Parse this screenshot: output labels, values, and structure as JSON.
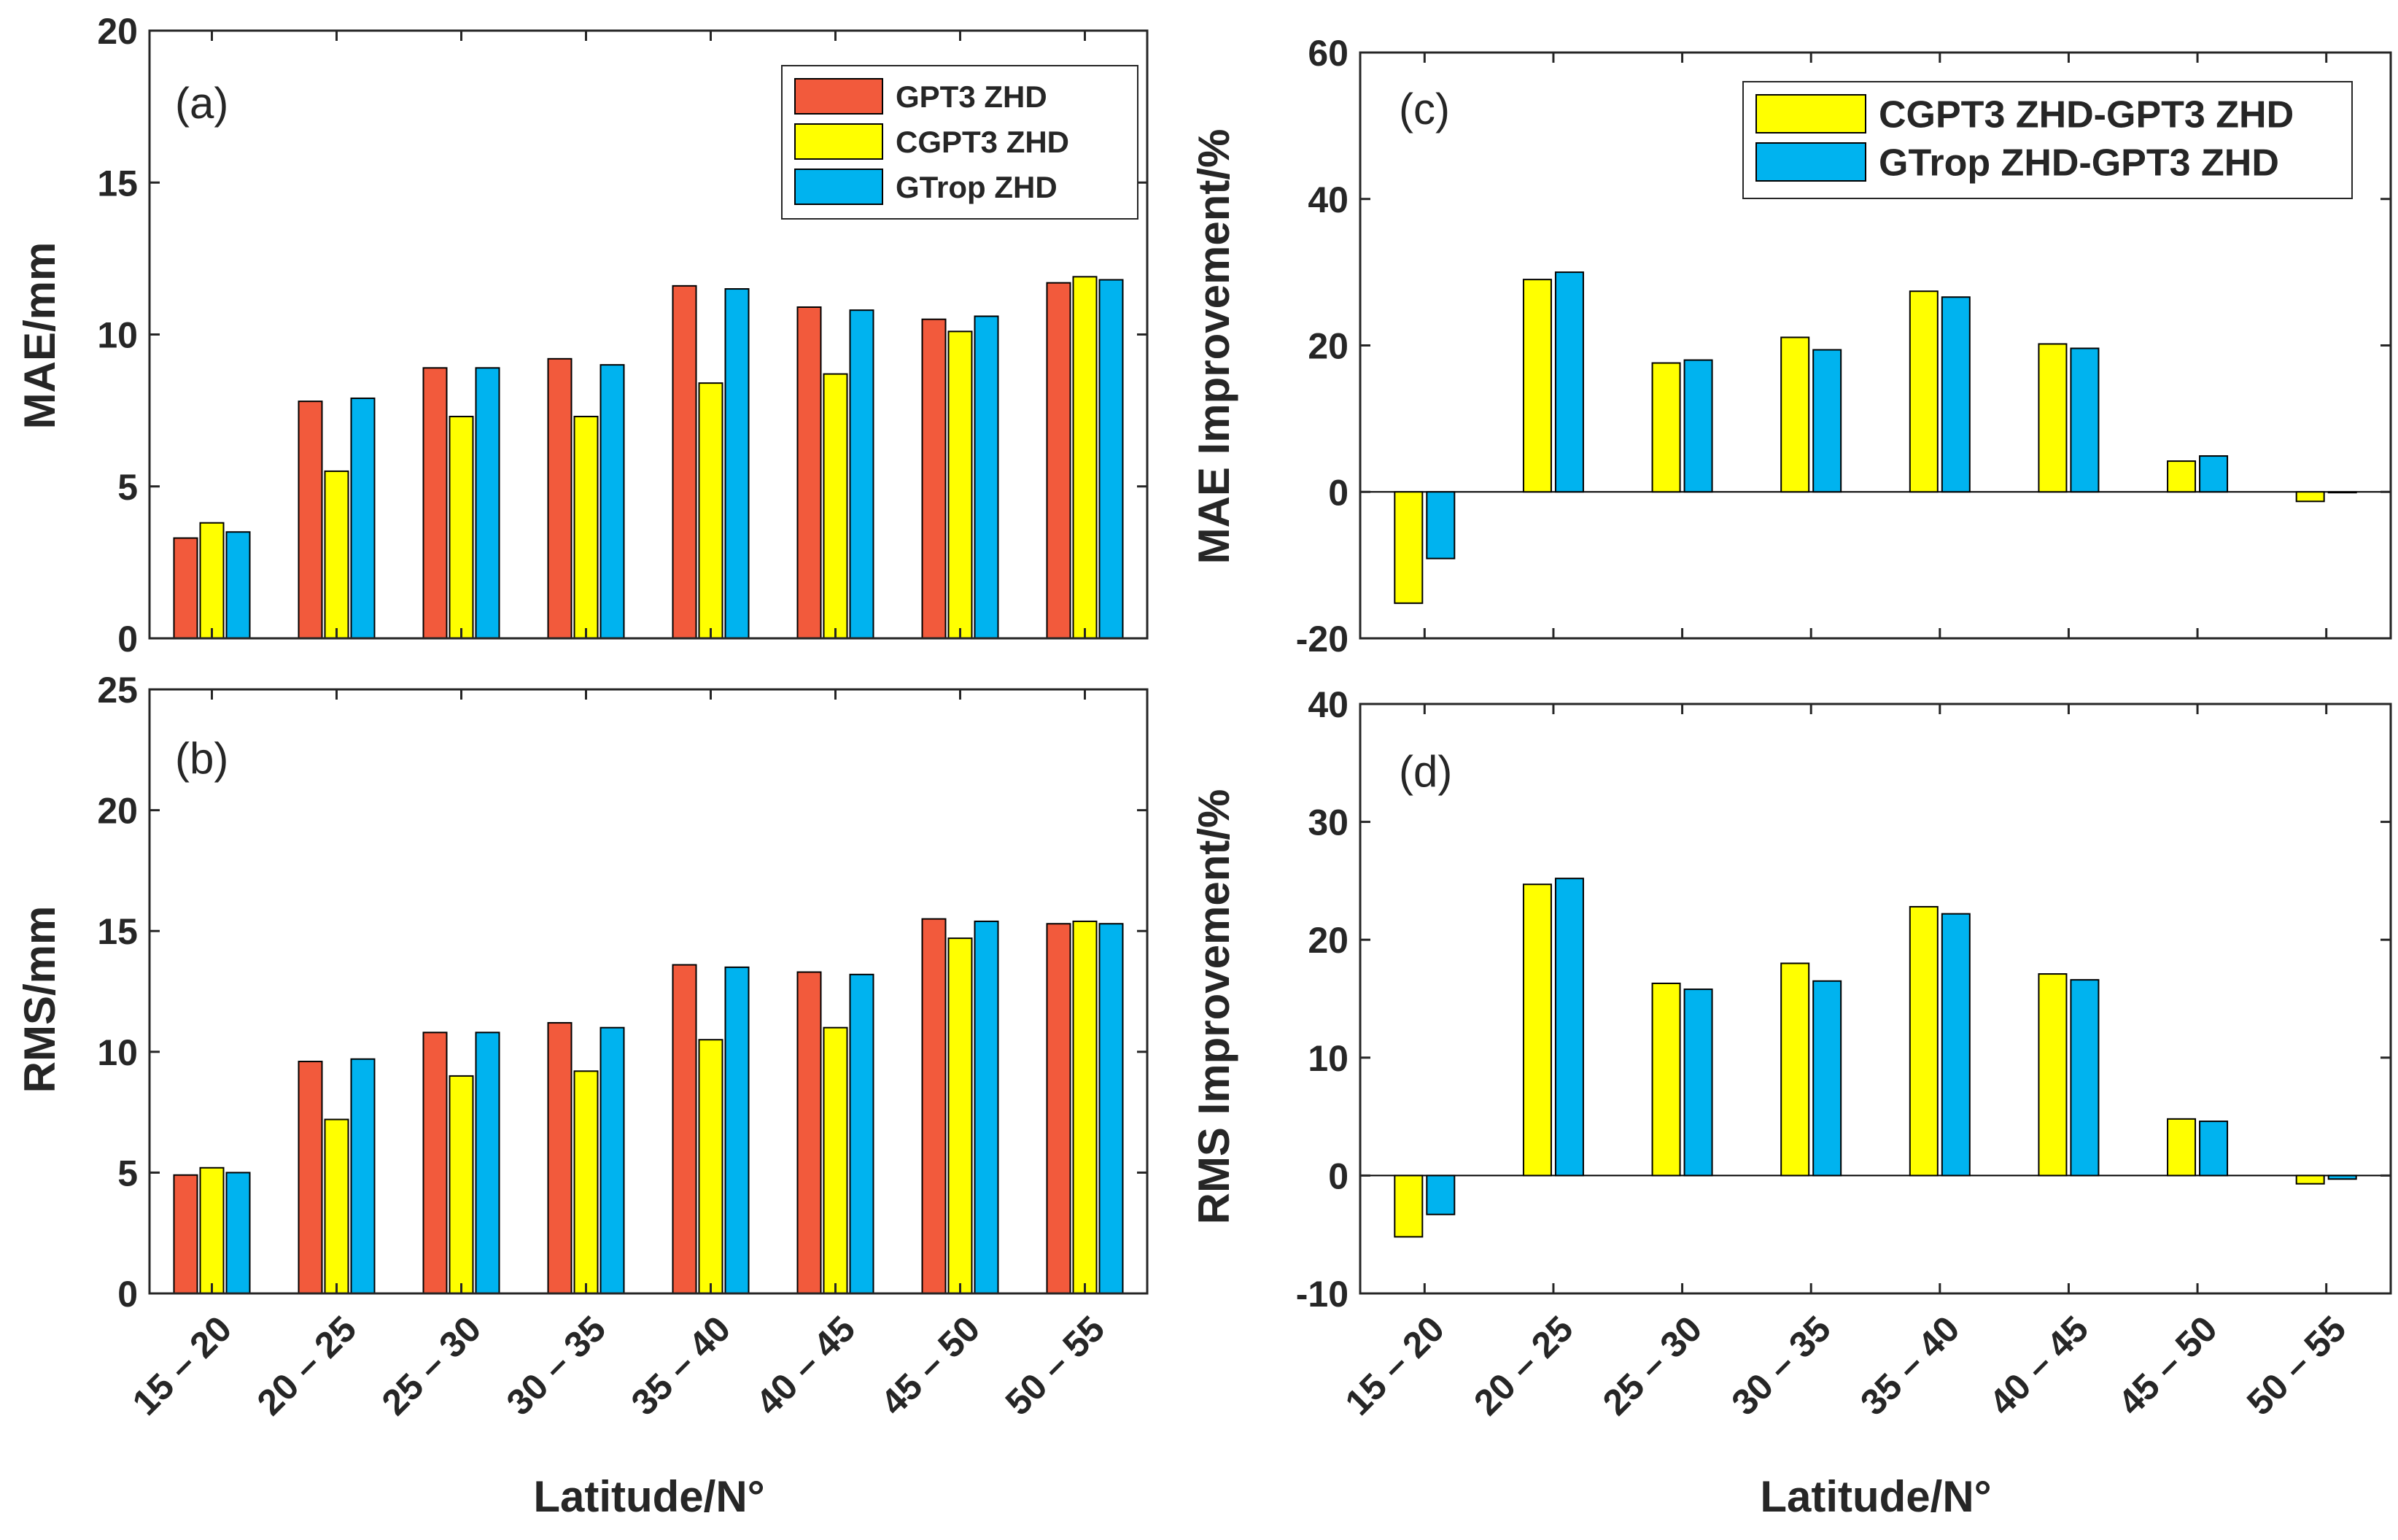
{
  "colors": {
    "gpt3": "#f25a3c",
    "cgpt3": "#ffff00",
    "gtrop": "#00b3ef",
    "axis": "#262626",
    "bar_edge": "#000000"
  },
  "x_axis_label": "Latitude/N°",
  "chart_data": [
    {
      "id": "a",
      "type": "bar",
      "label": "(a)",
      "ylabel": "MAE/mm",
      "ylim": [
        0,
        20
      ],
      "yticks": [
        0,
        5,
        10,
        15,
        20
      ],
      "categories": [
        "15 – 20",
        "20 – 25",
        "25 – 30",
        "30 – 35",
        "35 – 40",
        "40 – 45",
        "45 – 50",
        "50 – 55"
      ],
      "legend_position": "top-right",
      "series": [
        {
          "name": "GPT3 ZHD",
          "color_key": "gpt3",
          "values": [
            3.3,
            7.8,
            8.9,
            9.2,
            11.6,
            10.9,
            10.5,
            11.7
          ]
        },
        {
          "name": "CGPT3 ZHD",
          "color_key": "cgpt3",
          "values": [
            3.8,
            5.5,
            7.3,
            7.3,
            8.4,
            8.7,
            10.1,
            11.9
          ]
        },
        {
          "name": "GTrop ZHD",
          "color_key": "gtrop",
          "values": [
            3.5,
            7.9,
            8.9,
            9.0,
            11.5,
            10.8,
            10.6,
            11.8
          ]
        }
      ]
    },
    {
      "id": "b",
      "type": "bar",
      "label": "(b)",
      "ylabel": "RMS/mm",
      "ylim": [
        0,
        25
      ],
      "yticks": [
        0,
        5,
        10,
        15,
        20,
        25
      ],
      "categories": [
        "15 – 20",
        "20 – 25",
        "25 – 30",
        "30 – 35",
        "35 – 40",
        "40 – 45",
        "45 – 50",
        "50 – 55"
      ],
      "series": [
        {
          "name": "GPT3 ZHD",
          "color_key": "gpt3",
          "values": [
            4.9,
            9.6,
            10.8,
            11.2,
            13.6,
            13.3,
            15.5,
            15.3
          ]
        },
        {
          "name": "CGPT3 ZHD",
          "color_key": "cgpt3",
          "values": [
            5.2,
            7.2,
            9.0,
            9.2,
            10.5,
            11.0,
            14.7,
            15.4
          ]
        },
        {
          "name": "GTrop ZHD",
          "color_key": "gtrop",
          "values": [
            5.0,
            9.7,
            10.8,
            11.0,
            13.5,
            13.2,
            15.4,
            15.3
          ]
        }
      ]
    },
    {
      "id": "c",
      "type": "bar",
      "label": "(c)",
      "ylabel": "MAE Improvement/%",
      "ylim": [
        -20,
        60
      ],
      "yticks": [
        -20,
        0,
        20,
        40,
        60
      ],
      "categories": [
        "15 – 20",
        "20 – 25",
        "25 – 30",
        "30 – 35",
        "35 – 40",
        "40 – 45",
        "45 – 50",
        "50 – 55"
      ],
      "legend_position": "top-right",
      "series": [
        {
          "name": "CGPT3 ZHD-GPT3 ZHD",
          "color_key": "cgpt3",
          "values": [
            -15.2,
            29.0,
            17.6,
            21.1,
            27.4,
            20.2,
            4.2,
            -1.3
          ]
        },
        {
          "name": "GTrop ZHD-GPT3 ZHD",
          "color_key": "gtrop",
          "values": [
            -9.1,
            30.0,
            18.0,
            19.4,
            26.6,
            19.6,
            4.9,
            -0.1
          ]
        }
      ]
    },
    {
      "id": "d",
      "type": "bar",
      "label": "(d)",
      "ylabel": "RMS Improvement/%",
      "ylim": [
        -10,
        40
      ],
      "yticks": [
        -10,
        0,
        10,
        20,
        30,
        40
      ],
      "categories": [
        "15 – 20",
        "20 – 25",
        "25 – 30",
        "30 – 35",
        "35 – 40",
        "40 – 45",
        "45 – 50",
        "50 – 55"
      ],
      "series": [
        {
          "name": "CGPT3 ZHD-GPT3 ZHD",
          "color_key": "cgpt3",
          "values": [
            -5.2,
            24.7,
            16.3,
            18.0,
            22.8,
            17.1,
            4.8,
            -0.7
          ]
        },
        {
          "name": "GTrop ZHD-GPT3 ZHD",
          "color_key": "gtrop",
          "values": [
            -3.3,
            25.2,
            15.8,
            16.5,
            22.2,
            16.6,
            4.6,
            -0.3
          ]
        }
      ]
    }
  ]
}
